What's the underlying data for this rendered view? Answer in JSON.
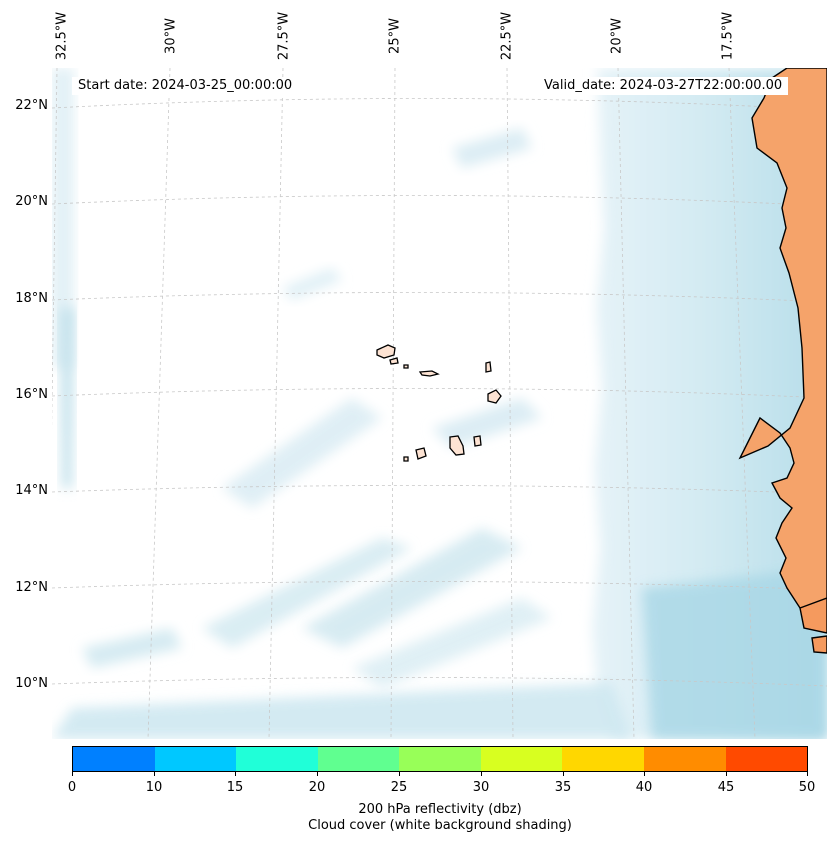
{
  "map": {
    "start_label": "Start date: 2024-03-25_00:00:00",
    "valid_label": "Valid_date: 2024-03-27T22:00:00.00",
    "longitude_labels": [
      "32.5°W",
      "30°W",
      "27.5°W",
      "25°W",
      "22.5°W",
      "20°W",
      "17.5°W"
    ],
    "latitude_labels": [
      "22°N",
      "20°N",
      "18°N",
      "16°N",
      "14°N",
      "12°N",
      "10°N"
    ],
    "features": [
      "africa-coastline",
      "cape-verde-islands",
      "cloud-cover-shading",
      "lat-lon-gridlines"
    ],
    "colors": {
      "land": "#f5a36a",
      "cloud": "#add8e6",
      "coastline": "#000000",
      "grid": "#cccccc"
    }
  },
  "colorbar": {
    "ticks": [
      "0",
      "10",
      "15",
      "20",
      "25",
      "30",
      "35",
      "40",
      "45",
      "50"
    ],
    "colors": [
      "#0080ff",
      "#00c8ff",
      "#20ffd8",
      "#60ff90",
      "#98ff58",
      "#d8ff20",
      "#ffd700",
      "#ff8c00",
      "#ff4a00"
    ],
    "label": "200 hPa reflectivity (dbz)",
    "sublabel": "Cloud cover (white background shading)"
  }
}
